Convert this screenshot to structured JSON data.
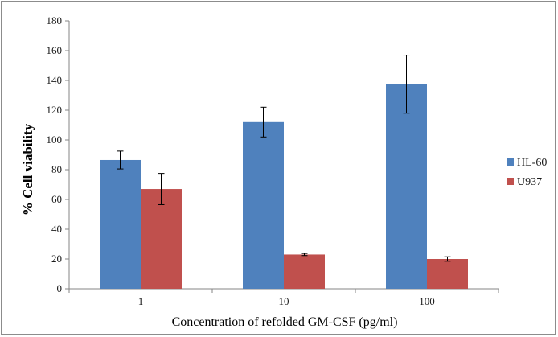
{
  "chart_data": {
    "type": "bar",
    "categories": [
      "1",
      "10",
      "100"
    ],
    "series": [
      {
        "name": "HL-60",
        "color": "#4f81bd",
        "values": [
          86.5,
          112,
          137.5
        ],
        "errors": [
          6,
          10,
          19.5
        ]
      },
      {
        "name": "U937",
        "color": "#c0504d",
        "values": [
          67,
          23,
          20
        ],
        "errors": [
          10.5,
          0.7,
          1.5
        ]
      }
    ],
    "xlabel": "Concentration of refolded GM-CSF (pg/ml)",
    "ylabel": "% Cell viability",
    "ylim": [
      0,
      180
    ],
    "yticks": [
      "0",
      "20",
      "40",
      "60",
      "80",
      "100",
      "120",
      "140",
      "160",
      "180"
    ],
    "grid": false,
    "legend_position": "right"
  }
}
